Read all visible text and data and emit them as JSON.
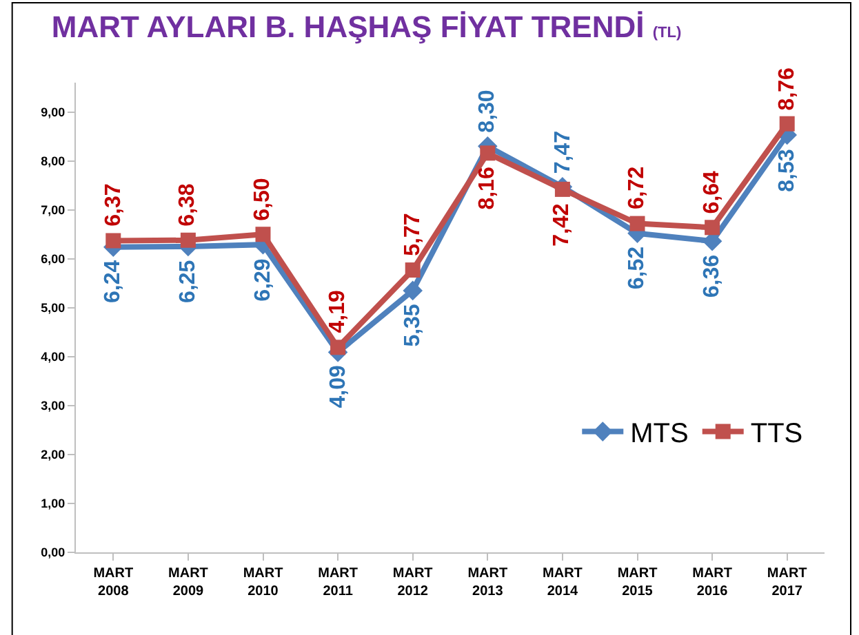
{
  "chart_data": {
    "type": "line",
    "title": "MART AYLARI B. HAŞHAŞ FİYAT TRENDİ",
    "subtitle": "(TL)",
    "categories": [
      "MART 2008",
      "MART 2009",
      "MART 2010",
      "MART 2011",
      "MART 2012",
      "MART 2013",
      "MART 2014",
      "MART 2015",
      "MART 2016",
      "MART 2017"
    ],
    "series": [
      {
        "name": "MTS",
        "color": "#4f81bd",
        "marker": "diamond",
        "values": [
          6.24,
          6.25,
          6.29,
          4.09,
          5.35,
          8.3,
          7.47,
          6.52,
          6.36,
          8.53
        ],
        "value_labels": [
          "6,24",
          "6,25",
          "6,29",
          "4,09",
          "5,35",
          "8,30",
          "7,47",
          "6,52",
          "6,36",
          "8,53"
        ]
      },
      {
        "name": "TTS",
        "color": "#c0504d",
        "marker": "square",
        "values": [
          6.37,
          6.38,
          6.5,
          4.19,
          5.77,
          8.16,
          7.42,
          6.72,
          6.64,
          8.76
        ],
        "value_labels": [
          "6,37",
          "6,38",
          "6,50",
          "4,19",
          "5,77",
          "8,16",
          "7,42",
          "6,72",
          "6,64",
          "8,76"
        ]
      }
    ],
    "ylim": [
      0,
      9.6
    ],
    "yticks": [
      {
        "value": 0,
        "label": "0,00"
      },
      {
        "value": 1,
        "label": "1,00"
      },
      {
        "value": 2,
        "label": "2,00"
      },
      {
        "value": 3,
        "label": "3,00"
      },
      {
        "value": 4,
        "label": "4,00"
      },
      {
        "value": 5,
        "label": "5,00"
      },
      {
        "value": 6,
        "label": "6,00"
      },
      {
        "value": 7,
        "label": "7,00"
      },
      {
        "value": 8,
        "label": "8,00"
      },
      {
        "value": 9,
        "label": "9,00"
      }
    ],
    "grid": false,
    "legend": "bottom right"
  }
}
